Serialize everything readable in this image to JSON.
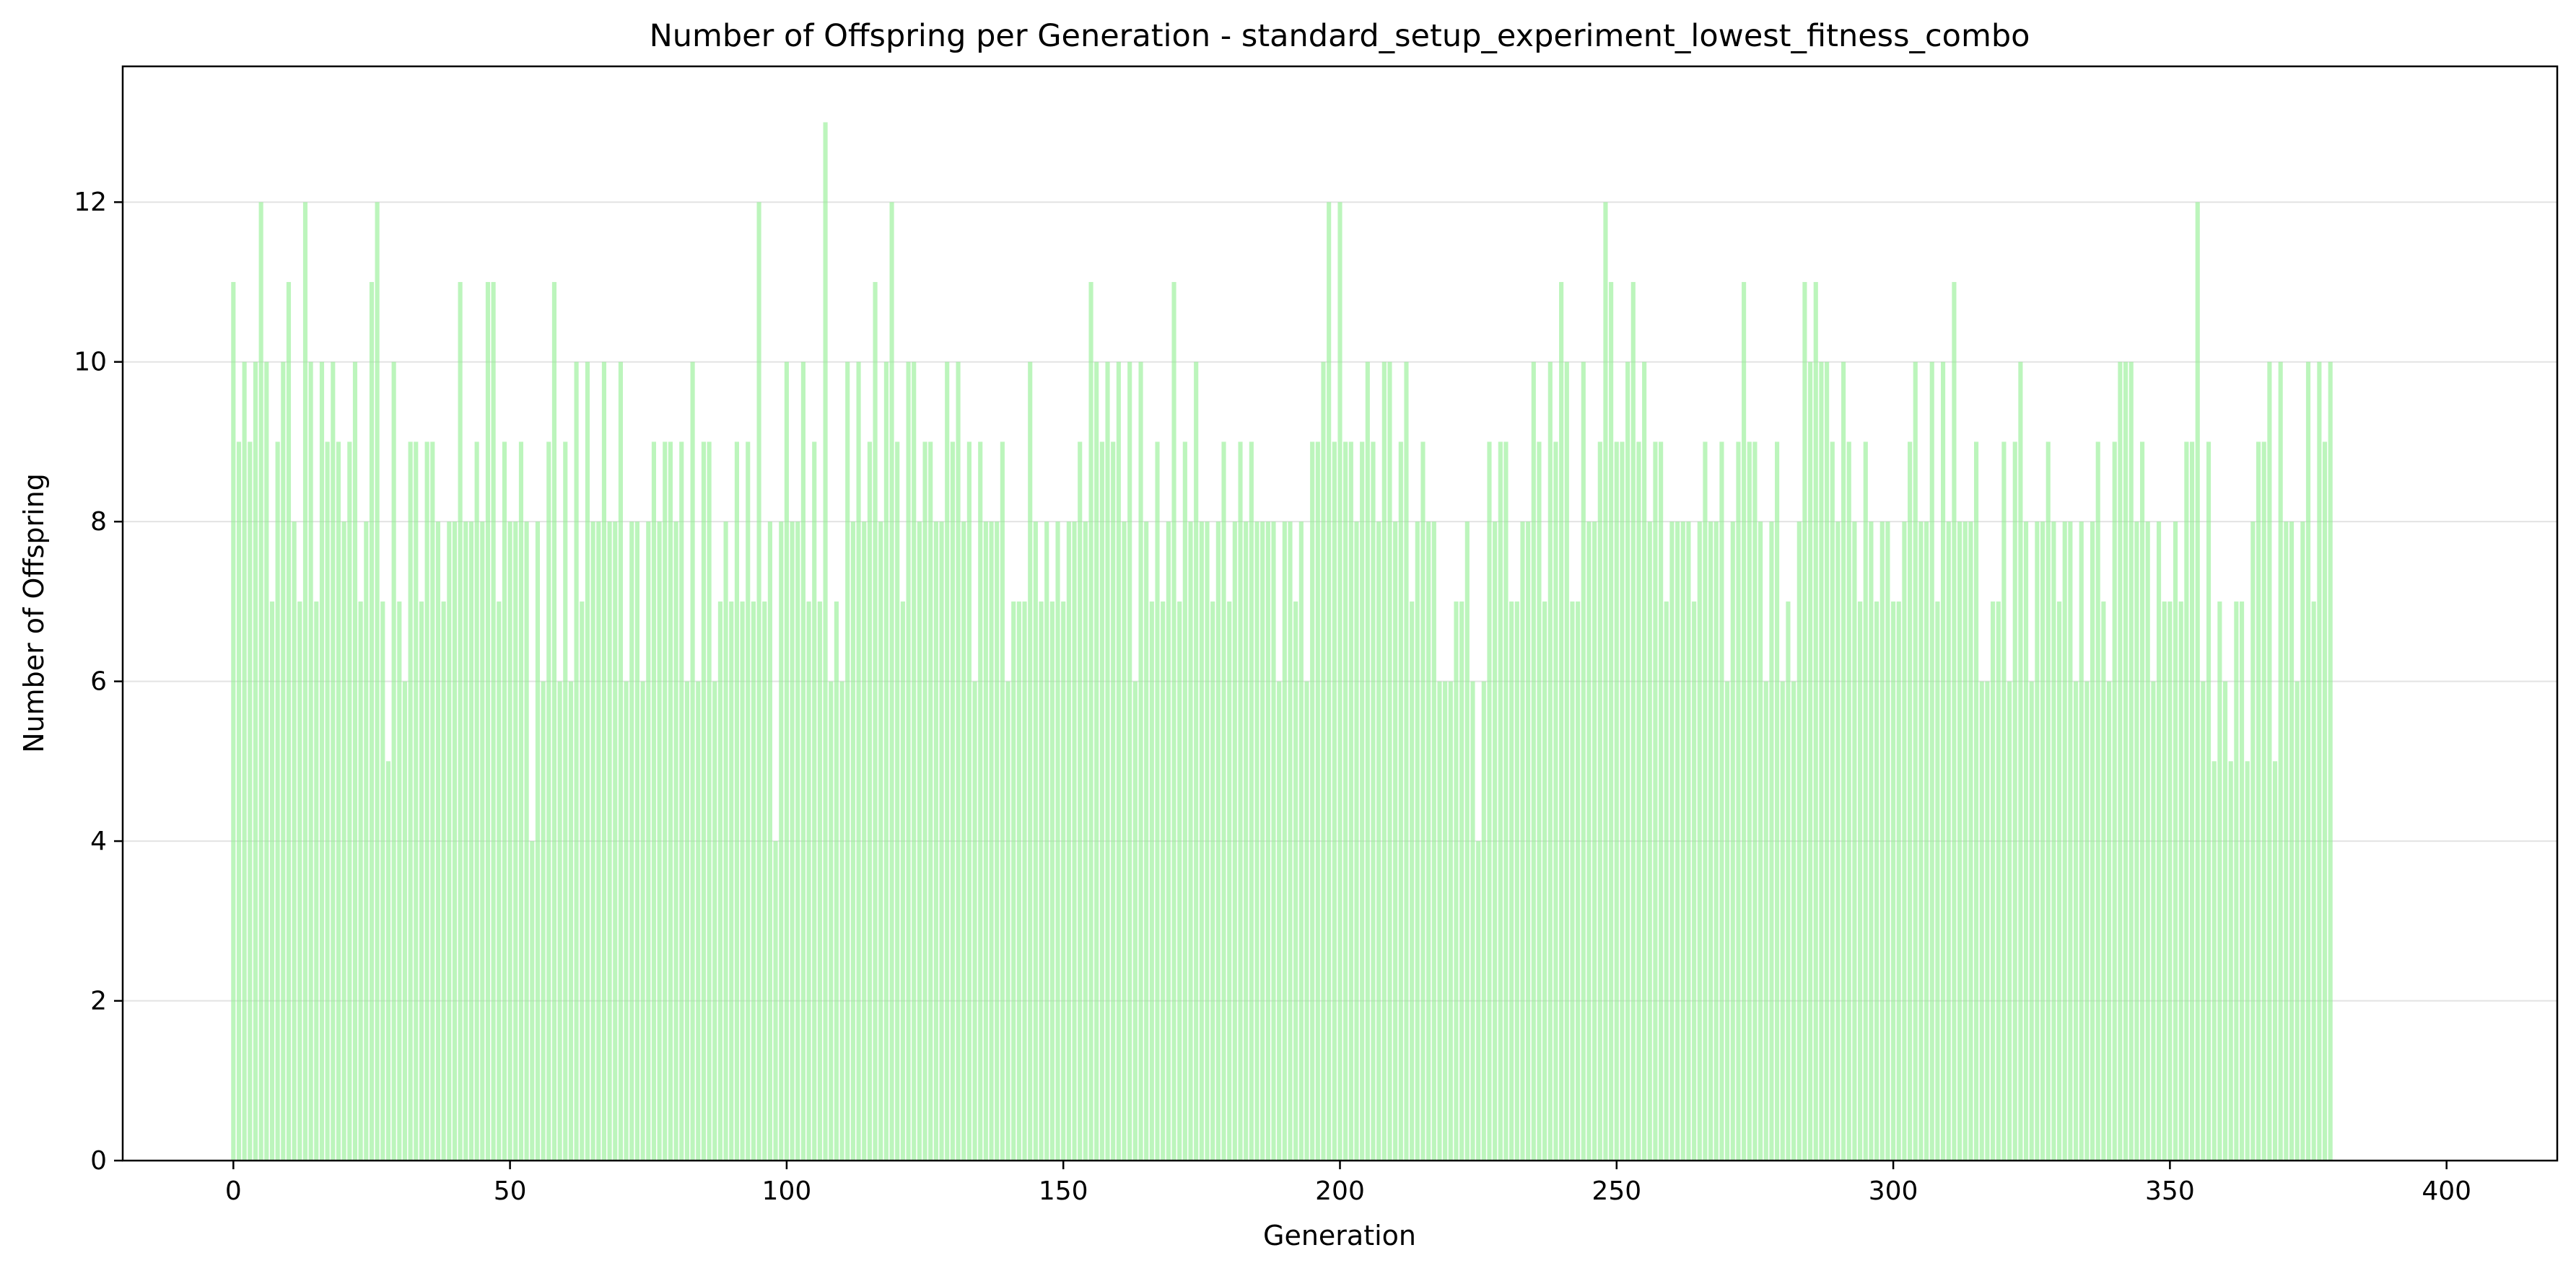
{
  "chart_data": {
    "type": "bar",
    "title": "Number of Offspring per Generation - standard_setup_experiment_lowest_fitness_combo",
    "xlabel": "Generation",
    "ylabel": "Number of Offspring",
    "xlim": [
      -20,
      420
    ],
    "ylim": [
      0,
      13.7
    ],
    "xticks": [
      0,
      50,
      100,
      150,
      200,
      250,
      300,
      350,
      400
    ],
    "yticks": [
      0,
      2,
      4,
      6,
      8,
      10,
      12
    ],
    "grid": "y",
    "bar_color": "#90ee90",
    "x_start": 0,
    "values": [
      11,
      9,
      10,
      9,
      10,
      12,
      10,
      7,
      9,
      10,
      11,
      8,
      7,
      12,
      10,
      7,
      10,
      9,
      10,
      9,
      8,
      9,
      10,
      7,
      8,
      11,
      12,
      7,
      5,
      10,
      7,
      6,
      9,
      9,
      7,
      9,
      9,
      8,
      7,
      8,
      8,
      11,
      8,
      8,
      9,
      8,
      11,
      11,
      7,
      9,
      8,
      8,
      9,
      8,
      4,
      8,
      6,
      9,
      11,
      6,
      9,
      6,
      10,
      7,
      10,
      8,
      8,
      10,
      8,
      8,
      10,
      6,
      8,
      8,
      6,
      8,
      9,
      8,
      9,
      9,
      8,
      9,
      6,
      10,
      6,
      9,
      9,
      6,
      7,
      8,
      7,
      9,
      7,
      9,
      7,
      12,
      7,
      8,
      4,
      8,
      10,
      8,
      8,
      10,
      7,
      9,
      7,
      13,
      6,
      7,
      6,
      10,
      8,
      10,
      8,
      9,
      11,
      8,
      10,
      12,
      9,
      7,
      10,
      10,
      8,
      9,
      9,
      8,
      8,
      10,
      9,
      10,
      8,
      9,
      6,
      9,
      8,
      8,
      8,
      9,
      6,
      7,
      7,
      7,
      10,
      8,
      7,
      8,
      7,
      8,
      7,
      8,
      8,
      9,
      8,
      11,
      10,
      9,
      10,
      9,
      10,
      8,
      10,
      6,
      10,
      8,
      7,
      9,
      7,
      8,
      11,
      7,
      9,
      8,
      10,
      8,
      8,
      7,
      8,
      9,
      7,
      8,
      9,
      8,
      9,
      8,
      8,
      8,
      8,
      6,
      8,
      8,
      7,
      8,
      6,
      9,
      9,
      10,
      12,
      9,
      12,
      9,
      9,
      8,
      9,
      10,
      9,
      8,
      10,
      10,
      8,
      9,
      10,
      7,
      8,
      9,
      8,
      8,
      6,
      6,
      6,
      7,
      7,
      8,
      6,
      4,
      6,
      9,
      8,
      9,
      9,
      7,
      7,
      8,
      8,
      10,
      9,
      7,
      10,
      9,
      11,
      10,
      7,
      7,
      10,
      8,
      8,
      9,
      12,
      11,
      9,
      9,
      10,
      11,
      9,
      10,
      8,
      9,
      9,
      7,
      8,
      8,
      8,
      8,
      7,
      8,
      9,
      8,
      8,
      9,
      6,
      8,
      9,
      11,
      9,
      9,
      8,
      6,
      8,
      9,
      6,
      7,
      6,
      8,
      11,
      10,
      11,
      10,
      10,
      9,
      8,
      10,
      9,
      8,
      7,
      9,
      8,
      7,
      8,
      8,
      7,
      7,
      8,
      9,
      10,
      8,
      8,
      10,
      7,
      10,
      8,
      11,
      8,
      8,
      8,
      9,
      6,
      6,
      7,
      7,
      9,
      6,
      9,
      10,
      8,
      6,
      8,
      8,
      9,
      8,
      7,
      8,
      8,
      6,
      8,
      6,
      8,
      9,
      7,
      6,
      9,
      10,
      10,
      10,
      8,
      9,
      8,
      6,
      8,
      7,
      7,
      8,
      7,
      9,
      9,
      12,
      6,
      9,
      5,
      7,
      6,
      5,
      7,
      7,
      5,
      8,
      9,
      9,
      10,
      5,
      10,
      8,
      8,
      6,
      8,
      10,
      7,
      10,
      9,
      10
    ]
  }
}
